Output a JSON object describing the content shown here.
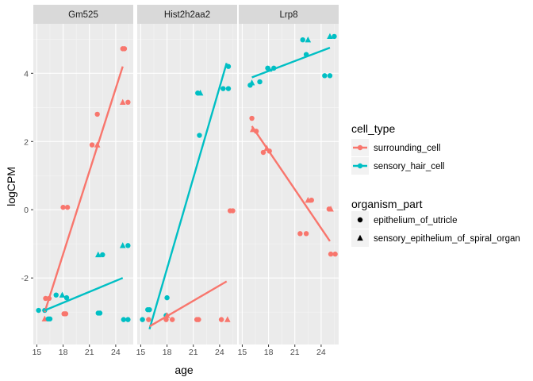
{
  "chart_data": {
    "type": "scatter",
    "xlabel": "age",
    "ylabel": "logCPM",
    "xlim": [
      14.6,
      26.0
    ],
    "ylim": [
      -3.95,
      5.45
    ],
    "x_ticks": [
      15,
      18,
      21,
      24
    ],
    "y_ticks": [
      -2,
      0,
      2,
      4
    ],
    "grid": true,
    "panels": [
      "Gm525",
      "Hist2h2aa2",
      "Lrp8"
    ],
    "legend": {
      "placement": "right",
      "color_title": "cell_type",
      "color_entries": [
        {
          "name": "surrounding_cell",
          "color": "#F8766D"
        },
        {
          "name": "sensory_hair_cell",
          "color": "#00BFC4"
        }
      ],
      "shape_title": "organism_part",
      "shape_entries": [
        {
          "name": "epithelium_of_utricle",
          "shape": "circle"
        },
        {
          "name": "sensory_epithelium_of_spiral_organ",
          "shape": "triangle"
        }
      ]
    },
    "facets": [
      {
        "name": "Gm525",
        "points": [
          {
            "x": 16.0,
            "y": -2.6,
            "c": "surrounding_cell",
            "s": "circle"
          },
          {
            "x": 16.4,
            "y": -2.6,
            "c": "surrounding_cell",
            "s": "circle"
          },
          {
            "x": 15.9,
            "y": -3.2,
            "c": "surrounding_cell",
            "s": "triangle"
          },
          {
            "x": 18.0,
            "y": 0.07,
            "c": "surrounding_cell",
            "s": "circle"
          },
          {
            "x": 18.5,
            "y": 0.07,
            "c": "surrounding_cell",
            "s": "circle"
          },
          {
            "x": 18.1,
            "y": -3.05,
            "c": "surrounding_cell",
            "s": "circle"
          },
          {
            "x": 18.3,
            "y": -3.05,
            "c": "surrounding_cell",
            "s": "circle"
          },
          {
            "x": 21.3,
            "y": 1.9,
            "c": "surrounding_cell",
            "s": "circle"
          },
          {
            "x": 21.9,
            "y": 1.9,
            "c": "surrounding_cell",
            "s": "triangle"
          },
          {
            "x": 21.9,
            "y": 2.8,
            "c": "surrounding_cell",
            "s": "circle"
          },
          {
            "x": 24.8,
            "y": 4.72,
            "c": "surrounding_cell",
            "s": "circle"
          },
          {
            "x": 25.0,
            "y": 4.72,
            "c": "surrounding_cell",
            "s": "circle"
          },
          {
            "x": 24.8,
            "y": 3.15,
            "c": "surrounding_cell",
            "s": "triangle"
          },
          {
            "x": 25.4,
            "y": 3.15,
            "c": "surrounding_cell",
            "s": "circle"
          },
          {
            "x": 15.2,
            "y": -2.95,
            "c": "sensory_hair_cell",
            "s": "circle"
          },
          {
            "x": 15.9,
            "y": -2.95,
            "c": "sensory_hair_cell",
            "s": "circle"
          },
          {
            "x": 16.3,
            "y": -3.2,
            "c": "sensory_hair_cell",
            "s": "circle"
          },
          {
            "x": 16.5,
            "y": -3.2,
            "c": "sensory_hair_cell",
            "s": "circle"
          },
          {
            "x": 17.2,
            "y": -2.5,
            "c": "sensory_hair_cell",
            "s": "circle"
          },
          {
            "x": 17.9,
            "y": -2.5,
            "c": "sensory_hair_cell",
            "s": "triangle"
          },
          {
            "x": 18.4,
            "y": -2.58,
            "c": "sensory_hair_cell",
            "s": "circle"
          },
          {
            "x": 22.0,
            "y": -3.03,
            "c": "sensory_hair_cell",
            "s": "circle"
          },
          {
            "x": 22.2,
            "y": -3.03,
            "c": "sensory_hair_cell",
            "s": "circle"
          },
          {
            "x": 22.0,
            "y": -1.32,
            "c": "sensory_hair_cell",
            "s": "triangle"
          },
          {
            "x": 22.5,
            "y": -1.32,
            "c": "sensory_hair_cell",
            "s": "circle"
          },
          {
            "x": 24.8,
            "y": -1.05,
            "c": "sensory_hair_cell",
            "s": "triangle"
          },
          {
            "x": 25.4,
            "y": -1.05,
            "c": "sensory_hair_cell",
            "s": "circle"
          },
          {
            "x": 24.9,
            "y": -3.22,
            "c": "sensory_hair_cell",
            "s": "circle"
          },
          {
            "x": 25.4,
            "y": -3.22,
            "c": "sensory_hair_cell",
            "s": "circle"
          }
        ],
        "fits": [
          {
            "c": "surrounding_cell",
            "x": [
              15.9,
              24.8
            ],
            "y": [
              -3.0,
              4.2
            ]
          },
          {
            "c": "sensory_hair_cell",
            "x": [
              15.9,
              24.8
            ],
            "y": [
              -2.95,
              -2.0
            ]
          }
        ]
      },
      {
        "name": "Hist2h2aa2",
        "points": [
          {
            "x": 15.2,
            "y": -3.22,
            "c": "sensory_hair_cell",
            "s": "circle"
          },
          {
            "x": 15.8,
            "y": -2.93,
            "c": "sensory_hair_cell",
            "s": "circle"
          },
          {
            "x": 16.0,
            "y": -2.93,
            "c": "sensory_hair_cell",
            "s": "circle"
          },
          {
            "x": 18.0,
            "y": -2.58,
            "c": "sensory_hair_cell",
            "s": "circle"
          },
          {
            "x": 17.9,
            "y": -3.1,
            "c": "sensory_hair_cell",
            "s": "circle"
          },
          {
            "x": 21.5,
            "y": 3.42,
            "c": "sensory_hair_cell",
            "s": "circle"
          },
          {
            "x": 21.8,
            "y": 3.42,
            "c": "sensory_hair_cell",
            "s": "triangle"
          },
          {
            "x": 21.7,
            "y": 2.18,
            "c": "sensory_hair_cell",
            "s": "circle"
          },
          {
            "x": 24.4,
            "y": 3.55,
            "c": "sensory_hair_cell",
            "s": "circle"
          },
          {
            "x": 25.0,
            "y": 3.55,
            "c": "sensory_hair_cell",
            "s": "circle"
          },
          {
            "x": 25.0,
            "y": 4.2,
            "c": "sensory_hair_cell",
            "s": "circle"
          },
          {
            "x": 15.9,
            "y": -3.22,
            "c": "surrounding_cell",
            "s": "circle"
          },
          {
            "x": 17.9,
            "y": -3.22,
            "c": "surrounding_cell",
            "s": "circle"
          },
          {
            "x": 18.0,
            "y": -3.1,
            "c": "surrounding_cell",
            "s": "triangle"
          },
          {
            "x": 18.6,
            "y": -3.22,
            "c": "surrounding_cell",
            "s": "circle"
          },
          {
            "x": 21.4,
            "y": -3.22,
            "c": "surrounding_cell",
            "s": "circle"
          },
          {
            "x": 21.6,
            "y": -3.22,
            "c": "surrounding_cell",
            "s": "circle"
          },
          {
            "x": 24.2,
            "y": -3.22,
            "c": "surrounding_cell",
            "s": "circle"
          },
          {
            "x": 24.9,
            "y": -3.22,
            "c": "surrounding_cell",
            "s": "triangle"
          },
          {
            "x": 25.2,
            "y": -0.03,
            "c": "surrounding_cell",
            "s": "circle"
          },
          {
            "x": 25.5,
            "y": -0.03,
            "c": "surrounding_cell",
            "s": "circle"
          }
        ],
        "fits": [
          {
            "c": "sensory_hair_cell",
            "x": [
              16.0,
              24.8
            ],
            "y": [
              -3.5,
              4.3
            ]
          },
          {
            "c": "surrounding_cell",
            "x": [
              16.0,
              24.8
            ],
            "y": [
              -3.42,
              -2.1
            ]
          }
        ]
      },
      {
        "name": "Lrp8",
        "points": [
          {
            "x": 15.9,
            "y": 3.65,
            "c": "sensory_hair_cell",
            "s": "circle"
          },
          {
            "x": 16.1,
            "y": 3.72,
            "c": "sensory_hair_cell",
            "s": "triangle"
          },
          {
            "x": 17.0,
            "y": 3.75,
            "c": "sensory_hair_cell",
            "s": "circle"
          },
          {
            "x": 17.9,
            "y": 4.15,
            "c": "sensory_hair_cell",
            "s": "circle"
          },
          {
            "x": 18.1,
            "y": 4.12,
            "c": "sensory_hair_cell",
            "s": "triangle"
          },
          {
            "x": 18.6,
            "y": 4.15,
            "c": "sensory_hair_cell",
            "s": "circle"
          },
          {
            "x": 21.9,
            "y": 4.98,
            "c": "sensory_hair_cell",
            "s": "circle"
          },
          {
            "x": 22.5,
            "y": 4.98,
            "c": "sensory_hair_cell",
            "s": "triangle"
          },
          {
            "x": 22.3,
            "y": 4.55,
            "c": "sensory_hair_cell",
            "s": "circle"
          },
          {
            "x": 24.4,
            "y": 3.93,
            "c": "sensory_hair_cell",
            "s": "circle"
          },
          {
            "x": 25.0,
            "y": 3.93,
            "c": "sensory_hair_cell",
            "s": "circle"
          },
          {
            "x": 25.0,
            "y": 5.08,
            "c": "sensory_hair_cell",
            "s": "triangle"
          },
          {
            "x": 25.5,
            "y": 5.08,
            "c": "sensory_hair_cell",
            "s": "circle"
          },
          {
            "x": 16.1,
            "y": 2.68,
            "c": "surrounding_cell",
            "s": "circle"
          },
          {
            "x": 16.2,
            "y": 2.35,
            "c": "surrounding_cell",
            "s": "triangle"
          },
          {
            "x": 16.6,
            "y": 2.3,
            "c": "surrounding_cell",
            "s": "circle"
          },
          {
            "x": 17.4,
            "y": 1.68,
            "c": "surrounding_cell",
            "s": "circle"
          },
          {
            "x": 17.8,
            "y": 1.8,
            "c": "surrounding_cell",
            "s": "triangle"
          },
          {
            "x": 18.1,
            "y": 1.72,
            "c": "surrounding_cell",
            "s": "circle"
          },
          {
            "x": 21.6,
            "y": -0.7,
            "c": "surrounding_cell",
            "s": "circle"
          },
          {
            "x": 22.3,
            "y": -0.7,
            "c": "surrounding_cell",
            "s": "circle"
          },
          {
            "x": 22.5,
            "y": 0.28,
            "c": "surrounding_cell",
            "s": "triangle"
          },
          {
            "x": 22.9,
            "y": 0.28,
            "c": "surrounding_cell",
            "s": "circle"
          },
          {
            "x": 24.9,
            "y": 0.02,
            "c": "surrounding_cell",
            "s": "circle"
          },
          {
            "x": 25.1,
            "y": 0.02,
            "c": "surrounding_cell",
            "s": "triangle"
          },
          {
            "x": 25.1,
            "y": -1.3,
            "c": "surrounding_cell",
            "s": "circle"
          },
          {
            "x": 25.6,
            "y": -1.3,
            "c": "surrounding_cell",
            "s": "circle"
          }
        ],
        "fits": [
          {
            "c": "sensory_hair_cell",
            "x": [
              16.1,
              25.0
            ],
            "y": [
              3.88,
              4.75
            ]
          },
          {
            "c": "surrounding_cell",
            "x": [
              16.1,
              25.0
            ],
            "y": [
              2.45,
              -0.92
            ]
          }
        ]
      }
    ]
  }
}
